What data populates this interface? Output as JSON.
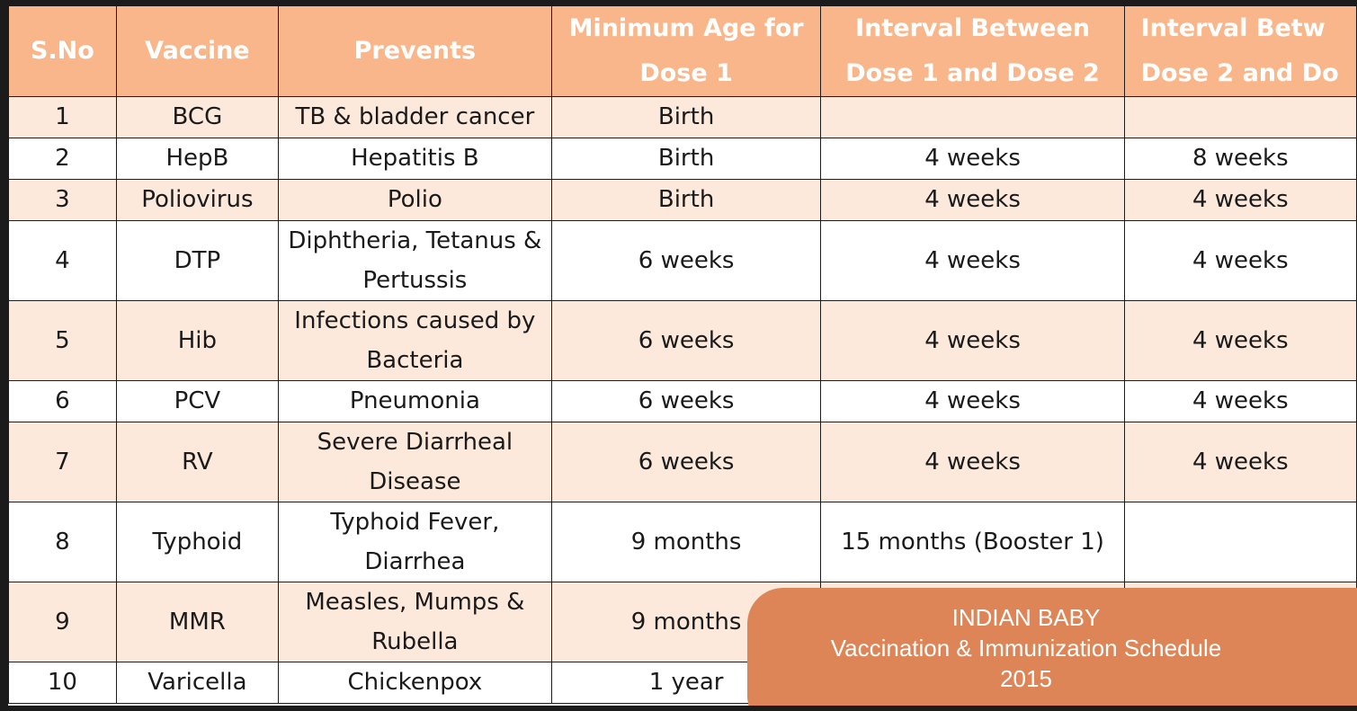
{
  "headers": {
    "sno": "S.No",
    "vaccine": "Vaccine",
    "prevents": "Prevents",
    "min_age_l1": "Minimum Age for",
    "min_age_l2": "Dose 1",
    "int12_l1": "Interval Between",
    "int12_l2": "Dose 1 and Dose 2",
    "int23_l1": "Interval Betw",
    "int23_l2": "Dose 2 and Do"
  },
  "rows": [
    {
      "sno": "1",
      "vaccine": "BCG",
      "prevents": "TB & bladder cancer",
      "min_age": "Birth",
      "int12": "",
      "int23": ""
    },
    {
      "sno": "2",
      "vaccine": "HepB",
      "prevents": "Hepatitis B",
      "min_age": "Birth",
      "int12": "4 weeks",
      "int23": "8 weeks"
    },
    {
      "sno": "3",
      "vaccine": "Poliovirus",
      "prevents": "Polio",
      "min_age": "Birth",
      "int12": "4 weeks",
      "int23": "4 weeks"
    },
    {
      "sno": "4",
      "vaccine": "DTP",
      "prevents": "Diphtheria, Tetanus & Pertussis",
      "min_age": "6 weeks",
      "int12": "4 weeks",
      "int23": "4 weeks"
    },
    {
      "sno": "5",
      "vaccine": "Hib",
      "prevents": "Infections caused by Bacteria",
      "min_age": "6 weeks",
      "int12": "4 weeks",
      "int23": "4 weeks"
    },
    {
      "sno": "6",
      "vaccine": "PCV",
      "prevents": "Pneumonia",
      "min_age": "6 weeks",
      "int12": "4 weeks",
      "int23": "4 weeks"
    },
    {
      "sno": "7",
      "vaccine": "RV",
      "prevents": "Severe Diarrheal Disease",
      "min_age": "6 weeks",
      "int12": "4 weeks",
      "int23": "4 weeks"
    },
    {
      "sno": "8",
      "vaccine": "Typhoid",
      "prevents": "Typhoid Fever, Diarrhea",
      "min_age": "9 months",
      "int12": "15 months (Booster 1)",
      "int23": ""
    },
    {
      "sno": "9",
      "vaccine": "MMR",
      "prevents": "Measles, Mumps & Rubella",
      "min_age": "9 months",
      "int12": "",
      "int23": ""
    },
    {
      "sno": "10",
      "vaccine": "Varicella",
      "prevents": "Chickenpox",
      "min_age": "1 year",
      "int12": "",
      "int23": ""
    }
  ],
  "banner": {
    "line1": "INDIAN BABY",
    "line2": "Vaccination & Immunization Schedule",
    "line3": "2015"
  },
  "colors": {
    "header_bg": "#f8b68a",
    "band_bg": "#fce9dc",
    "banner_bg": "#dd8556"
  }
}
